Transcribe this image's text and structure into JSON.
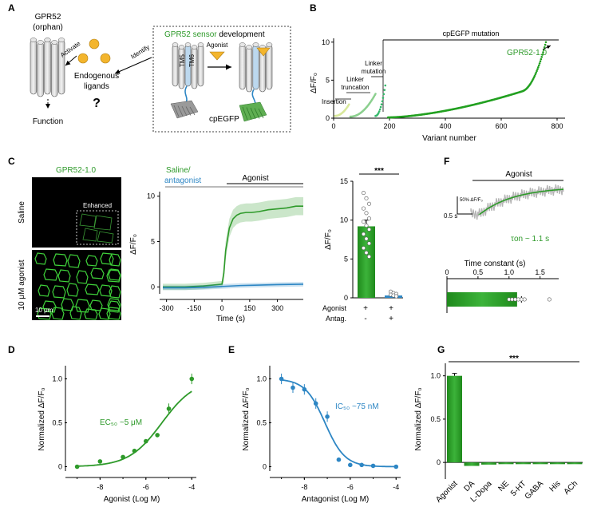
{
  "panels": {
    "A": {
      "label": "A",
      "orphan_title": "GPR52",
      "orphan_sub": "(orphan)",
      "activate": "Activate",
      "identify": "Identify",
      "endogenous": "Endogenous",
      "ligands": "ligands",
      "question": "?",
      "function": "Function",
      "sensor_title_green": "GPR52 sensor",
      "sensor_title_black": " development",
      "agonist": "Agonist",
      "tm5": "TM5",
      "tm6": "TM6",
      "cpegfp": "cpEGFP"
    },
    "B": {
      "label": "B",
      "ylabel": "ΔF/F₀",
      "xlabel": "Variant number",
      "cpegfp_mutation": "cpEGFP mutation",
      "insertion": "Insertion",
      "linker_truncation_1": "Linker",
      "linker_truncation_2": "truncation",
      "linker_mutation_1": "Linker",
      "linker_mutation_2": "mutation",
      "best": "GPR52-1.0",
      "xticks": [
        "0",
        "200",
        "400",
        "600",
        "800"
      ],
      "yticks": [
        "0",
        "5",
        "10"
      ]
    },
    "C": {
      "label": "C",
      "sensor": "GPR52-1.0",
      "saline": "Saline",
      "enhanced": "Enhanced",
      "agonist_img": "10 μM agonist",
      "scalebar": "10 μm",
      "legend_saline": "Saline/",
      "legend_antagonist": "antagonist",
      "agonist_bar": "Agonist",
      "ylabel": "ΔF/F₀",
      "xlabel": "Time (s)",
      "xticks": [
        "-300",
        "-150",
        "0",
        "150",
        "300"
      ],
      "yticks": [
        "0",
        "5",
        "10"
      ],
      "bar_yticks": [
        "0",
        "5",
        "10",
        "15"
      ],
      "bar_ylabel": "ΔF/F₀",
      "sig": "***",
      "row_agonist": "Agonist",
      "row_antag": "Antag.",
      "agonist_signs": [
        "+",
        "+"
      ],
      "antag_signs": [
        "-",
        "+"
      ]
    },
    "D": {
      "label": "D",
      "ylabel": "Normalized ΔF/F₀",
      "xlabel": "Agonist (Log M)",
      "annot": "EC₅₀ ~5 μM",
      "xticks": [
        "-8",
        "-6",
        "-4"
      ],
      "yticks": [
        "0",
        "0.5",
        "1.0"
      ]
    },
    "E": {
      "label": "E",
      "ylabel": "Normalized ΔF/F₀",
      "xlabel": "Antagonist (Log M)",
      "annot": "IC₅₀ ~75 nM",
      "xticks": [
        "-8",
        "-6",
        "-4"
      ],
      "yticks": [
        "0",
        "0.5",
        "1.0"
      ]
    },
    "F": {
      "label": "F",
      "agonist_bar": "Agonist",
      "scale_y": "50% ΔF/F₀",
      "scale_x": "0.5 s",
      "tau": "τon ~ 1.1 s",
      "xlabel": "Time constant (s)",
      "xticks": [
        "0",
        "0.5",
        "1.0",
        "1.5"
      ]
    },
    "G": {
      "label": "G",
      "ylabel": "Normalized ΔF/F₀",
      "sig": "***",
      "yticks": [
        "0",
        "0.5",
        "1.0"
      ]
    }
  },
  "chart_data": [
    {
      "panel": "B",
      "type": "scatter",
      "xlabel": "Variant number",
      "ylabel": "ΔF/F₀",
      "xlim": [
        0,
        800
      ],
      "ylim": [
        0,
        10.5
      ],
      "groups": [
        {
          "name": "Insertion",
          "color": "#d8e89a",
          "x_range": [
            5,
            55
          ],
          "y_range": [
            0.3,
            1.8
          ]
        },
        {
          "name": "Linker truncation",
          "color": "#8bcf8e",
          "x_range": [
            60,
            150
          ],
          "y_range": [
            0.2,
            3.2
          ]
        },
        {
          "name": "Linker mutation",
          "color": "#34b86a",
          "x_range": [
            150,
            185
          ],
          "y_range": [
            0.3,
            4.3
          ]
        },
        {
          "name": "cpEGFP mutation",
          "color": "#22a020",
          "x_range": [
            195,
            760
          ],
          "y_range": [
            0.1,
            10.0
          ]
        }
      ]
    },
    {
      "panel": "C-trace",
      "type": "line",
      "xlabel": "Time (s)",
      "ylabel": "ΔF/F₀",
      "xlim": [
        -320,
        440
      ],
      "ylim": [
        -0.5,
        10.5
      ],
      "series": [
        {
          "name": "Agonist",
          "color": "#2e9a2a",
          "x": [
            -320,
            -200,
            -100,
            0,
            10,
            20,
            40,
            60,
            80,
            100,
            130,
            160,
            200,
            250,
            300,
            350,
            400,
            440
          ],
          "y": [
            0,
            0,
            0.1,
            0.3,
            1.5,
            4.0,
            6.5,
            7.5,
            7.9,
            8.1,
            8.2,
            8.2,
            8.3,
            8.5,
            8.6,
            8.7,
            8.9,
            8.9
          ]
        },
        {
          "name": "Saline/antagonist",
          "color": "#2d86c4",
          "x": [
            -320,
            -200,
            -100,
            0,
            100,
            200,
            300,
            440
          ],
          "y": [
            -0.1,
            -0.1,
            -0.05,
            0.05,
            0.15,
            0.2,
            0.25,
            0.3
          ]
        }
      ]
    },
    {
      "panel": "C-bar",
      "type": "bar",
      "categories": [
        "Agonist +, Antag. -",
        "Agonist +, Antag. +"
      ],
      "values": [
        9.2,
        0.3
      ],
      "errors": [
        0.8,
        0.1
      ],
      "ylim": [
        0,
        15
      ]
    },
    {
      "panel": "D",
      "type": "scatter",
      "xlabel": "Agonist (Log M)",
      "ylabel": "Normalized ΔF/F₀",
      "xlim": [
        -9.3,
        -3.8
      ],
      "ylim": [
        -0.05,
        1.15
      ],
      "points": {
        "x": [
          -9,
          -8,
          -7,
          -6.5,
          -6,
          -5.5,
          -5,
          -4
        ],
        "y": [
          0,
          0.06,
          0.11,
          0.18,
          0.29,
          0.36,
          0.66,
          1.0
        ]
      },
      "fit": {
        "ec50_log": -5.3,
        "hill": 0.6
      }
    },
    {
      "panel": "E",
      "type": "scatter",
      "xlabel": "Antagonist (Log M)",
      "ylabel": "Normalized ΔF/F₀",
      "xlim": [
        -9.3,
        -3.8
      ],
      "ylim": [
        -0.05,
        1.15
      ],
      "points": {
        "x": [
          -9,
          -8.5,
          -8,
          -7.5,
          -7,
          -6.5,
          -6,
          -5.5,
          -5,
          -4
        ],
        "y": [
          1.0,
          0.9,
          0.88,
          0.72,
          0.57,
          0.08,
          0.02,
          0.02,
          0.01,
          0.0
        ]
      },
      "fit": {
        "ic50_log": -7.1,
        "hill": 1.0
      }
    },
    {
      "panel": "F",
      "type": "bar",
      "categories": [
        "τon"
      ],
      "values": [
        1.13
      ],
      "errors": [
        0.07
      ],
      "xlim": [
        0,
        1.8
      ]
    },
    {
      "panel": "G",
      "type": "bar",
      "categories": [
        "Agonist",
        "DA",
        "L-Dopa",
        "NE",
        "5-HT",
        "GABA",
        "His",
        "ACh"
      ],
      "values": [
        1.0,
        -0.04,
        -0.025,
        -0.02,
        -0.02,
        -0.02,
        -0.02,
        -0.02
      ],
      "ylim": [
        -0.1,
        1.08
      ]
    }
  ]
}
